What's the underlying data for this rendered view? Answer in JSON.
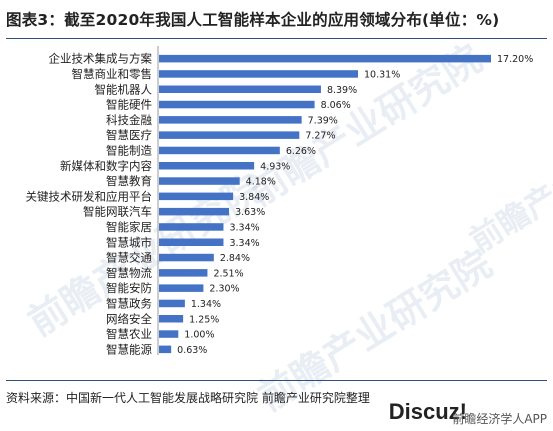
{
  "title": "图表3：截至2020年我国人工智能样本企业的应用领域分布(单位：%)",
  "source": "资料来源：中国新一代人工智能发展战略研究院 前瞻产业研究院整理",
  "watermark_text": "前瞻产业研究院",
  "brand": {
    "discuz": "Discuz!",
    "app": "前瞻经济学人APP"
  },
  "colors": {
    "bar": "#4472c4",
    "text": "#222222",
    "rule": "#2e4e7e"
  },
  "chart_data": {
    "type": "bar",
    "orientation": "horizontal",
    "categories": [
      "企业技术集成与方案",
      "智慧商业和零售",
      "智能机器人",
      "智能硬件",
      "科技金融",
      "智慧医疗",
      "智能制造",
      "新媒体和数字内容",
      "智慧教育",
      "关键技术研发和应用平台",
      "智能网联汽车",
      "智能家居",
      "智慧城市",
      "智慧交通",
      "智慧物流",
      "智能安防",
      "智慧政务",
      "网络安全",
      "智慧农业",
      "智慧能源"
    ],
    "values": [
      17.2,
      10.31,
      8.39,
      8.06,
      7.39,
      7.27,
      6.26,
      4.93,
      4.18,
      3.84,
      3.63,
      3.34,
      3.34,
      2.84,
      2.51,
      2.3,
      1.34,
      1.25,
      1.0,
      0.63
    ],
    "data_labels": [
      "17.20%",
      "10.31%",
      "8.39%",
      "8.06%",
      "7.39%",
      "7.27%",
      "6.26%",
      "4.93%",
      "4.18%",
      "3.84%",
      "3.63%",
      "3.34%",
      "3.34%",
      "2.84%",
      "2.51%",
      "2.30%",
      "1.34%",
      "1.25%",
      "1.00%",
      "0.63%"
    ],
    "title": "图表3：截至2020年我国人工智能样本企业的应用领域分布(单位：%)",
    "xlabel": "",
    "ylabel": "",
    "xlim": [
      0,
      17.2
    ],
    "grid": false,
    "legend": "none"
  }
}
